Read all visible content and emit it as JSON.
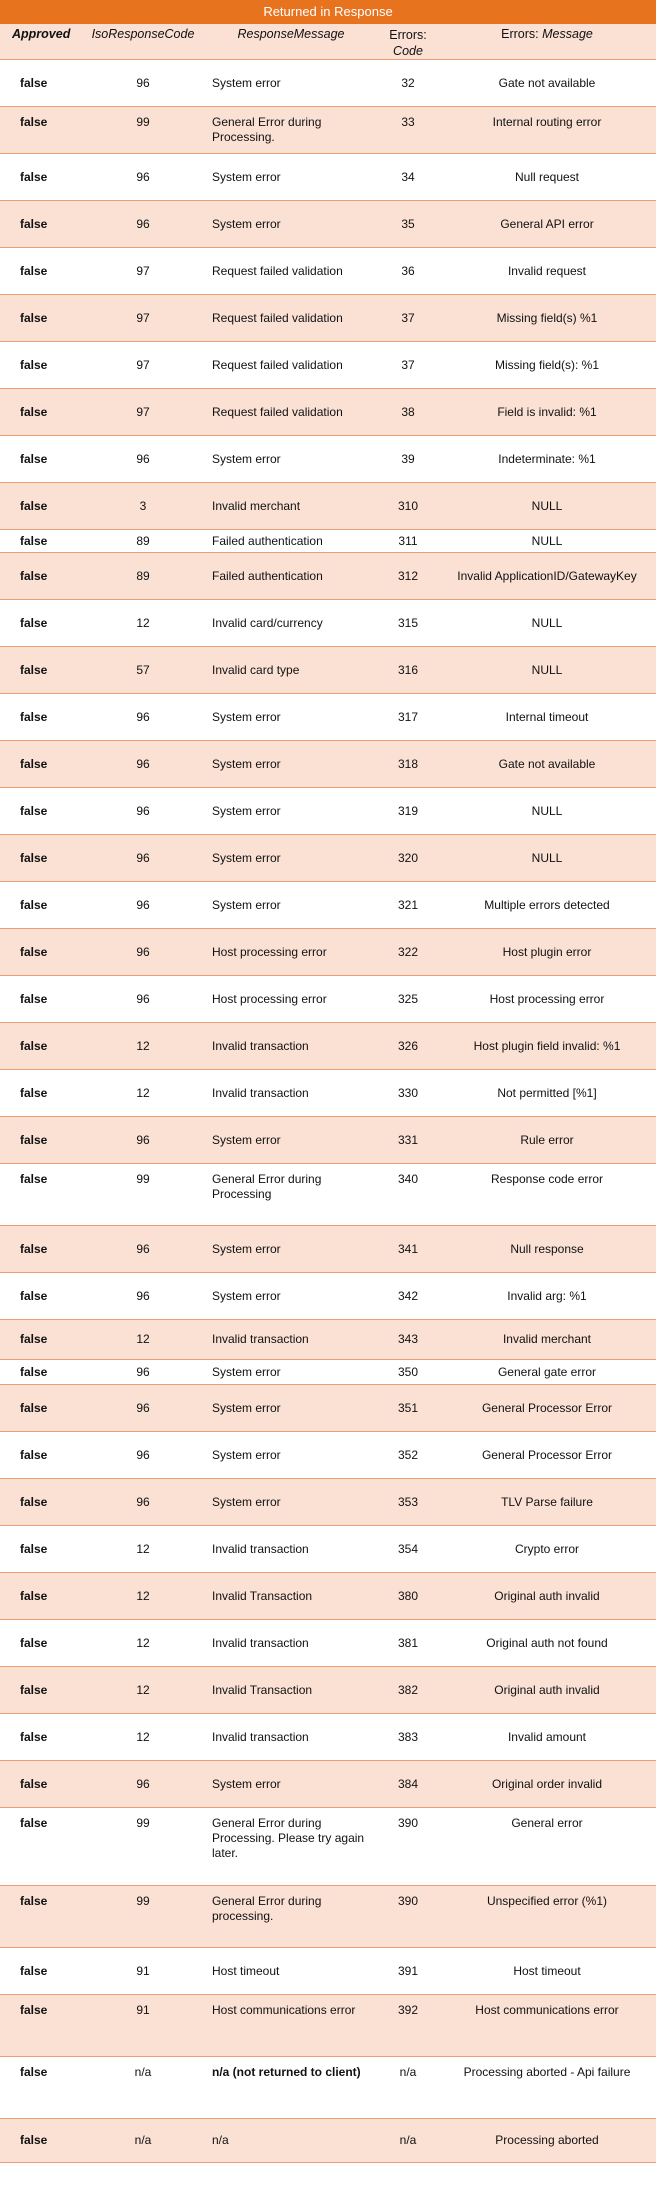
{
  "title": "Returned in Response",
  "headers": {
    "approved": "Approved",
    "iso": "IsoResponseCode",
    "message": "ResponseMessage",
    "code_line1": "Errors:",
    "code_line2": "Code",
    "msg_prefix": "Errors: ",
    "msg_italic": "Message"
  },
  "rows": [
    {
      "approved": "false",
      "iso": "96",
      "message": "System error",
      "code": "32",
      "error": "Gate not available"
    },
    {
      "approved": "false",
      "iso": "99",
      "message": "General Error during Processing.",
      "code": "33",
      "error": "Internal routing error"
    },
    {
      "approved": "false",
      "iso": "96",
      "message": "System error",
      "code": "34",
      "error": "Null request"
    },
    {
      "approved": "false",
      "iso": "96",
      "message": "System error",
      "code": "35",
      "error": "General API error"
    },
    {
      "approved": "false",
      "iso": "97",
      "message": "Request failed validation",
      "code": "36",
      "error": "Invalid request"
    },
    {
      "approved": "false",
      "iso": "97",
      "message": "Request failed validation",
      "code": "37",
      "error": "Missing field(s) %1"
    },
    {
      "approved": "false",
      "iso": "97",
      "message": "Request failed validation",
      "code": "37",
      "error": "Missing field(s): %1"
    },
    {
      "approved": "false",
      "iso": "97",
      "message": "Request failed validation",
      "code": "38",
      "error": "Field is invalid: %1"
    },
    {
      "approved": "false",
      "iso": "96",
      "message": "System error",
      "code": "39",
      "error": "Indeterminate: %1"
    },
    {
      "approved": "false",
      "iso": "3",
      "message": "Invalid merchant",
      "code": "310",
      "error": "NULL"
    },
    {
      "approved": "false",
      "iso": "89",
      "message": "Failed authentication",
      "code": "311",
      "error": "NULL"
    },
    {
      "approved": "false",
      "iso": "89",
      "message": "Failed authentication",
      "code": "312",
      "error": "Invalid ApplicationID/GatewayKey"
    },
    {
      "approved": "false",
      "iso": "12",
      "message": "Invalid card/currency",
      "code": "315",
      "error": "NULL"
    },
    {
      "approved": "false",
      "iso": "57",
      "message": "Invalid card type",
      "code": "316",
      "error": "NULL"
    },
    {
      "approved": "false",
      "iso": "96",
      "message": "System error",
      "code": "317",
      "error": "Internal timeout"
    },
    {
      "approved": "false",
      "iso": "96",
      "message": "System error",
      "code": "318",
      "error": "Gate not available"
    },
    {
      "approved": "false",
      "iso": "96",
      "message": "System error",
      "code": "319",
      "error": "NULL"
    },
    {
      "approved": "false",
      "iso": "96",
      "message": "System error",
      "code": "320",
      "error": "NULL"
    },
    {
      "approved": "false",
      "iso": "96",
      "message": "System error",
      "code": "321",
      "error": "Multiple errors detected"
    },
    {
      "approved": "false",
      "iso": "96",
      "message": "Host processing error",
      "code": "322",
      "error": "Host plugin error"
    },
    {
      "approved": "false",
      "iso": "96",
      "message": "Host processing error",
      "code": "325",
      "error": "Host processing error"
    },
    {
      "approved": "false",
      "iso": "12",
      "message": "Invalid transaction",
      "code": "326",
      "error": "Host plugin field invalid: %1"
    },
    {
      "approved": "false",
      "iso": "12",
      "message": "Invalid transaction",
      "code": "330",
      "error": "Not permitted [%1]"
    },
    {
      "approved": "false",
      "iso": "96",
      "message": "System error",
      "code": "331",
      "error": "Rule error"
    },
    {
      "approved": "false",
      "iso": "99",
      "message": "General Error during Processing",
      "code": "340",
      "error": "Response code error"
    },
    {
      "approved": "false",
      "iso": "96",
      "message": "System error",
      "code": "341",
      "error": "Null response"
    },
    {
      "approved": "false",
      "iso": "96",
      "message": "System error",
      "code": "342",
      "error": "Invalid arg: %1"
    },
    {
      "approved": "false",
      "iso": "12",
      "message": "Invalid transaction",
      "code": "343",
      "error": "Invalid merchant"
    },
    {
      "approved": "false",
      "iso": "96",
      "message": "System error",
      "code": "350",
      "error": "General gate error"
    },
    {
      "approved": "false",
      "iso": "96",
      "message": "System error",
      "code": "351",
      "error": "General Processor Error"
    },
    {
      "approved": "false",
      "iso": "96",
      "message": "System error",
      "code": "352",
      "error": "General Processor Error"
    },
    {
      "approved": "false",
      "iso": "96",
      "message": "System error",
      "code": "353",
      "error": "TLV Parse failure"
    },
    {
      "approved": "false",
      "iso": "12",
      "message": "Invalid transaction",
      "code": "354",
      "error": "Crypto error"
    },
    {
      "approved": "false",
      "iso": "12",
      "message": "Invalid Transaction",
      "code": "380",
      "error": "Original auth invalid"
    },
    {
      "approved": "false",
      "iso": "12",
      "message": "Invalid transaction",
      "code": "381",
      "error": "Original auth not found"
    },
    {
      "approved": "false",
      "iso": "12",
      "message": "Invalid Transaction",
      "code": "382",
      "error": "Original auth invalid"
    },
    {
      "approved": "false",
      "iso": "12",
      "message": "Invalid transaction",
      "code": "383",
      "error": "Invalid amount"
    },
    {
      "approved": "false",
      "iso": "96",
      "message": "System error",
      "code": "384",
      "error": "Original order invalid"
    },
    {
      "approved": "false",
      "iso": "99",
      "message": "General Error during Processing. Please try again later.",
      "code": "390",
      "error": "General error"
    },
    {
      "approved": "false",
      "iso": "99",
      "message": "General Error during processing.",
      "code": "390",
      "error": "Unspecified error (%1)"
    },
    {
      "approved": "false",
      "iso": "91",
      "message": "Host timeout",
      "code": "391",
      "error": "Host timeout"
    },
    {
      "approved": "false",
      "iso": "91",
      "message": "Host communications error",
      "code": "392",
      "error": "Host communications error"
    },
    {
      "approved": "false",
      "iso": "n/a",
      "message": "n/a (not returned to client)",
      "code": "n/a",
      "error": "Processing aborted - Api failure"
    },
    {
      "approved": "false",
      "iso": "n/a",
      "message": "n/a",
      "code": "n/a",
      "error": "Processing aborted"
    }
  ]
}
